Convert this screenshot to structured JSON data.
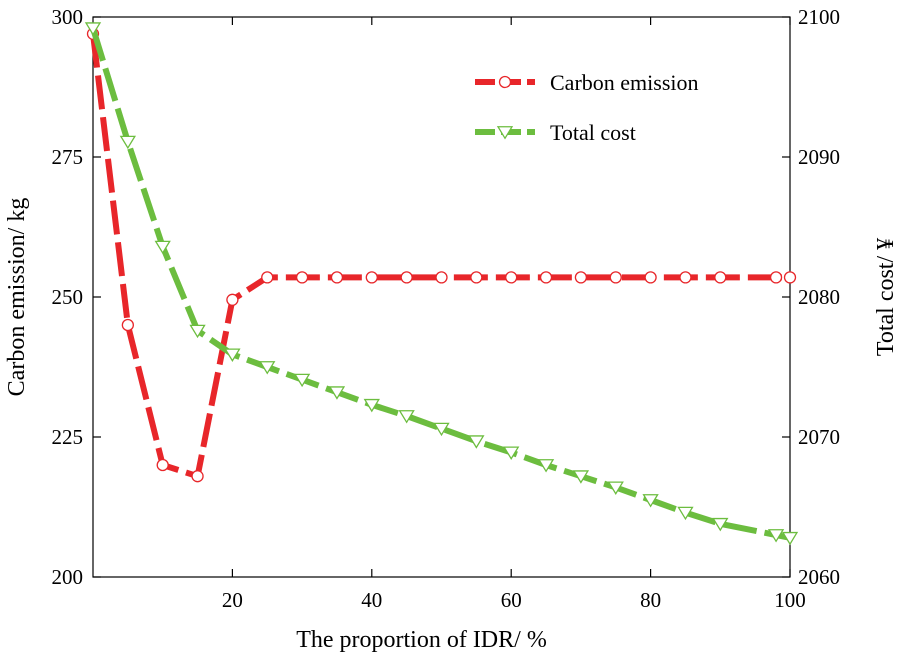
{
  "chart_data": {
    "type": "line",
    "title": "",
    "xlabel": "The proportion of IDR/ %",
    "ylabel_left": "Carbon emission/ kg",
    "ylabel_right": "Total cost/ ¥",
    "xlim": [
      0,
      100
    ],
    "ylim_left": [
      200,
      300
    ],
    "ylim_right": [
      2060,
      2100
    ],
    "x_ticks": [
      20,
      40,
      60,
      80,
      100
    ],
    "x_tick_labels": [
      "20",
      "40",
      "60",
      "80",
      "100"
    ],
    "y_left_ticks": [
      200,
      225,
      250,
      275,
      300
    ],
    "y_left_tick_labels": [
      "200",
      "225",
      "250",
      "275",
      "300"
    ],
    "y_right_ticks": [
      2060,
      2070,
      2080,
      2090,
      2100
    ],
    "y_right_tick_labels": [
      "2060",
      "2070",
      "2080",
      "2090",
      "2100"
    ],
    "legend_position": "top-right",
    "series": [
      {
        "name": "Carbon emission",
        "axis": "left",
        "color": "#e8262a",
        "marker": "circle",
        "x": [
          0,
          5,
          10,
          15,
          20,
          25,
          30,
          35,
          40,
          45,
          50,
          55,
          60,
          65,
          70,
          75,
          80,
          85,
          90,
          98,
          100
        ],
        "values": [
          297,
          245,
          220,
          218,
          249.5,
          253.5,
          253.5,
          253.5,
          253.5,
          253.5,
          253.5,
          253.5,
          253.5,
          253.5,
          253.5,
          253.5,
          253.5,
          253.5,
          253.5,
          253.5,
          253.5
        ]
      },
      {
        "name": "Total cost",
        "axis": "right",
        "color": "#6cbd3f",
        "marker": "triangle-down",
        "x": [
          0,
          5,
          10,
          15,
          20,
          25,
          30,
          35,
          40,
          45,
          50,
          55,
          60,
          65,
          70,
          75,
          80,
          85,
          90,
          98,
          100
        ],
        "values": [
          2099.2,
          2091.1,
          2083.6,
          2077.6,
          2075.9,
          2075.0,
          2074.1,
          2073.2,
          2072.3,
          2071.5,
          2070.6,
          2069.7,
          2068.9,
          2068.0,
          2067.2,
          2066.4,
          2065.5,
          2064.6,
          2063.8,
          2063.0,
          2062.8
        ]
      }
    ]
  }
}
